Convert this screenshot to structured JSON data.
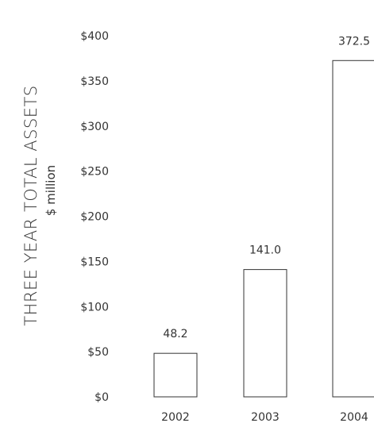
{
  "chart_data": {
    "type": "bar",
    "title": "",
    "ylabel": "THREE YEAR TOTAL ASSETS",
    "yunit": "$ million",
    "xlabel": "",
    "categories": [
      "2002",
      "2003",
      "2004"
    ],
    "values": [
      48.2,
      141.0,
      372.5
    ],
    "value_labels": [
      "48.2",
      "141.0",
      "372.5"
    ],
    "ylim": [
      0,
      400
    ],
    "yticks": [
      0,
      50,
      100,
      150,
      200,
      250,
      300,
      350,
      400
    ],
    "ytick_labels": [
      "$0",
      "$50",
      "$100",
      "$150",
      "$200",
      "$250",
      "$300",
      "$350",
      "$400"
    ],
    "grid": false,
    "legend": "none",
    "colors": {
      "bar_fill": "#ffffff",
      "bar_stroke": "#333333",
      "text": "#333333"
    }
  }
}
